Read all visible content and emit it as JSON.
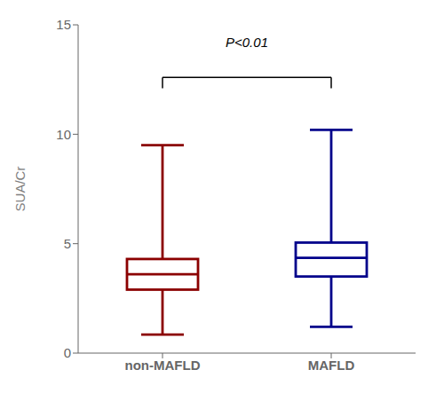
{
  "chart_data": {
    "type": "box",
    "categories": [
      "non-MAFLD",
      "MAFLD"
    ],
    "colors": [
      "#8B0000",
      "#00008B"
    ],
    "min": [
      0.85,
      1.2
    ],
    "q1": [
      2.9,
      3.5
    ],
    "median": [
      3.6,
      4.35
    ],
    "q3": [
      4.3,
      5.05
    ],
    "max": [
      9.5,
      10.2
    ],
    "ylabel": "SUA/Cr",
    "ylim": [
      0,
      15
    ],
    "yticks": [
      0,
      5,
      10,
      15
    ],
    "annotations": [
      {
        "text": "P<0.01",
        "y": 13.8,
        "bracket_y": 12.6,
        "bracket_drop": 0.5
      }
    ]
  }
}
